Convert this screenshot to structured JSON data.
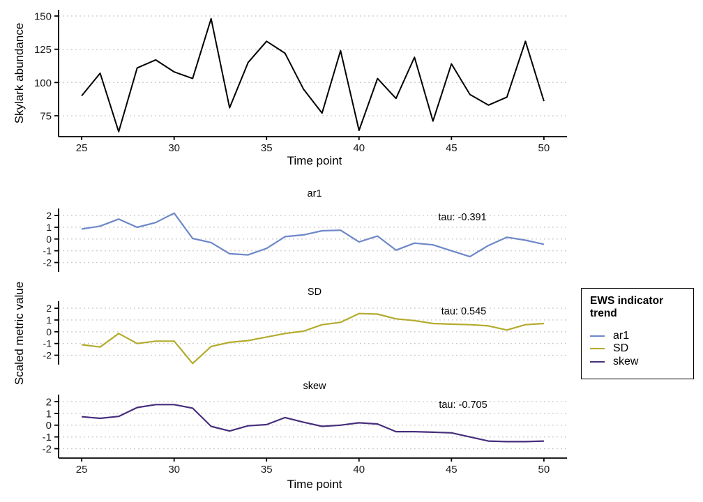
{
  "figure_background": "#ffffff",
  "facets": {
    "ylabel": "Scaled metric value",
    "xlabel": "Time point"
  },
  "legend": {
    "title": "EWS indicator trend",
    "items": [
      {
        "label": "ar1",
        "color": "#6d87c8"
      },
      {
        "label": "SD",
        "color": "#b3ab2d"
      },
      {
        "label": "skew",
        "color": "#472e7c"
      }
    ]
  },
  "chart_data": [
    {
      "type": "line",
      "panel": "abundance",
      "title": "",
      "xlabel": "Time point",
      "ylabel": "Skylark abundance",
      "x": [
        25,
        26,
        27,
        28,
        29,
        30,
        31,
        32,
        33,
        34,
        35,
        36,
        37,
        38,
        39,
        40,
        41,
        42,
        43,
        44,
        45,
        46,
        47,
        48,
        49,
        50
      ],
      "values": [
        90,
        107,
        63,
        111,
        117,
        108,
        103,
        148,
        81,
        115,
        131,
        122,
        95,
        77,
        124,
        64,
        103,
        88,
        119,
        71,
        114,
        91,
        83,
        89,
        131,
        86
      ],
      "color": "#000000",
      "xlim": [
        23.75,
        51.25
      ],
      "ylim": [
        59,
        155
      ],
      "xticks": [
        25,
        30,
        35,
        40,
        45,
        50
      ],
      "yticks": [
        150,
        125,
        100,
        75
      ],
      "grid": "horizontal-dotted",
      "legend_position": "none"
    },
    {
      "type": "line",
      "panel": "ar1",
      "title": "ar1",
      "annotation": "tau: -0.391",
      "x": [
        25,
        26,
        27,
        28,
        29,
        30,
        31,
        32,
        33,
        34,
        35,
        36,
        37,
        38,
        39,
        40,
        41,
        42,
        43,
        44,
        45,
        46,
        47,
        48,
        49,
        50
      ],
      "values": [
        0.85,
        1.1,
        1.7,
        1.0,
        1.4,
        2.2,
        0.05,
        -0.3,
        -1.25,
        -1.35,
        -0.8,
        0.2,
        0.35,
        0.7,
        0.75,
        -0.25,
        0.25,
        -0.95,
        -0.35,
        -0.5,
        -1.0,
        -1.5,
        -0.55,
        0.15,
        -0.1,
        -0.45
      ],
      "color": "#6d87c8",
      "xlim": [
        23.75,
        51.25
      ],
      "ylim": [
        -2.8,
        2.6
      ],
      "xticks": [
        25,
        30,
        35,
        40,
        45,
        50
      ],
      "yticks": [
        2,
        1,
        0,
        -1,
        -2
      ],
      "grid": "horizontal-dotted"
    },
    {
      "type": "line",
      "panel": "SD",
      "title": "SD",
      "annotation": "tau: 0.545",
      "x": [
        25,
        26,
        27,
        28,
        29,
        30,
        31,
        32,
        33,
        34,
        35,
        36,
        37,
        38,
        39,
        40,
        41,
        42,
        43,
        44,
        45,
        46,
        47,
        48,
        49,
        50
      ],
      "values": [
        -1.1,
        -1.3,
        -0.15,
        -1.0,
        -0.8,
        -0.8,
        -2.7,
        -1.25,
        -0.9,
        -0.75,
        -0.45,
        -0.15,
        0.05,
        0.6,
        0.8,
        1.55,
        1.5,
        1.1,
        0.95,
        0.7,
        0.65,
        0.6,
        0.5,
        0.15,
        0.6,
        0.7
      ],
      "color": "#b3ab2d",
      "xlim": [
        23.75,
        51.25
      ],
      "ylim": [
        -2.8,
        2.6
      ],
      "xticks": [
        25,
        30,
        35,
        40,
        45,
        50
      ],
      "yticks": [
        2,
        1,
        0,
        -1,
        -2
      ],
      "grid": "horizontal-dotted"
    },
    {
      "type": "line",
      "panel": "skew",
      "title": "skew",
      "annotation": "tau: -0.705",
      "x": [
        25,
        26,
        27,
        28,
        29,
        30,
        31,
        32,
        33,
        34,
        35,
        36,
        37,
        38,
        39,
        40,
        41,
        42,
        43,
        44,
        45,
        46,
        47,
        48,
        49,
        50
      ],
      "values": [
        0.72,
        0.58,
        0.75,
        1.5,
        1.75,
        1.75,
        1.45,
        -0.1,
        -0.5,
        -0.05,
        0.05,
        0.65,
        0.25,
        -0.1,
        0.0,
        0.2,
        0.1,
        -0.55,
        -0.55,
        -0.6,
        -0.65,
        -1.0,
        -1.35,
        -1.4,
        -1.4,
        -1.35
      ],
      "color": "#472e7c",
      "xlim": [
        23.75,
        51.25
      ],
      "ylim": [
        -2.8,
        2.6
      ],
      "xticks": [
        25,
        30,
        35,
        40,
        45,
        50
      ],
      "yticks": [
        2,
        1,
        0,
        -1,
        -2
      ],
      "grid": "horizontal-dotted"
    }
  ],
  "style": {
    "gridline_color": "#c9c9c9",
    "axis_color": "#000000",
    "text_color": "#1a1a1a"
  }
}
